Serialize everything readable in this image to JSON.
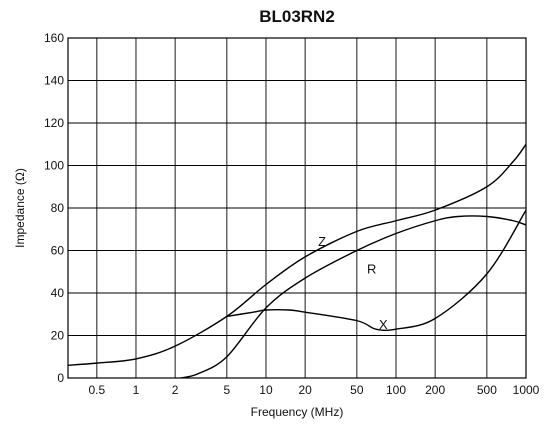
{
  "chart_data": {
    "type": "line",
    "title": "BL03RN2",
    "xlabel": "Frequency (MHz)",
    "ylabel": "Impedance (Ω)",
    "x_scale": "log",
    "xlim": [
      0.3,
      1000
    ],
    "ylim": [
      0,
      160
    ],
    "grid": true,
    "x_ticks": [
      {
        "value": 0.5,
        "label": "0.5"
      },
      {
        "value": 1,
        "label": "1"
      },
      {
        "value": 2,
        "label": "2"
      },
      {
        "value": 5,
        "label": "5"
      },
      {
        "value": 10,
        "label": "10"
      },
      {
        "value": 20,
        "label": "20"
      },
      {
        "value": 50,
        "label": "50"
      },
      {
        "value": 100,
        "label": "100"
      },
      {
        "value": 200,
        "label": "200"
      },
      {
        "value": 500,
        "label": "500"
      },
      {
        "value": 1000,
        "label": "1000"
      }
    ],
    "y_ticks": [
      {
        "value": 0,
        "label": "0"
      },
      {
        "value": 20,
        "label": "20"
      },
      {
        "value": 40,
        "label": "40"
      },
      {
        "value": 60,
        "label": "60"
      },
      {
        "value": 80,
        "label": "80"
      },
      {
        "value": 100,
        "label": "100"
      },
      {
        "value": 120,
        "label": "120"
      },
      {
        "value": 140,
        "label": "140"
      },
      {
        "value": 160,
        "label": "160"
      }
    ],
    "series": [
      {
        "name": "Z",
        "points": [
          [
            0.3,
            6
          ],
          [
            0.5,
            7
          ],
          [
            1,
            9
          ],
          [
            2,
            15
          ],
          [
            5,
            29
          ],
          [
            10,
            44
          ],
          [
            20,
            57
          ],
          [
            50,
            69
          ],
          [
            100,
            74
          ],
          [
            200,
            79
          ],
          [
            500,
            90
          ],
          [
            800,
            102
          ],
          [
            1000,
            110
          ]
        ]
      },
      {
        "name": "R",
        "points": [
          [
            2.2,
            0
          ],
          [
            3,
            2
          ],
          [
            5,
            10
          ],
          [
            10,
            33
          ],
          [
            20,
            47
          ],
          [
            50,
            60
          ],
          [
            100,
            68
          ],
          [
            200,
            74
          ],
          [
            300,
            76
          ],
          [
            500,
            76
          ],
          [
            800,
            74
          ],
          [
            1000,
            72
          ]
        ]
      },
      {
        "name": "X",
        "points": [
          [
            5,
            29
          ],
          [
            8,
            31
          ],
          [
            10,
            32
          ],
          [
            15,
            32
          ],
          [
            20,
            31
          ],
          [
            50,
            27
          ],
          [
            70,
            23
          ],
          [
            100,
            23
          ],
          [
            200,
            28
          ],
          [
            500,
            49
          ],
          [
            1000,
            79
          ]
        ]
      }
    ],
    "annotations": [
      {
        "text": "Z",
        "x": 27,
        "y": 64
      },
      {
        "text": "R",
        "x": 65,
        "y": 51
      },
      {
        "text": "X",
        "x": 80,
        "y": 25
      }
    ]
  }
}
